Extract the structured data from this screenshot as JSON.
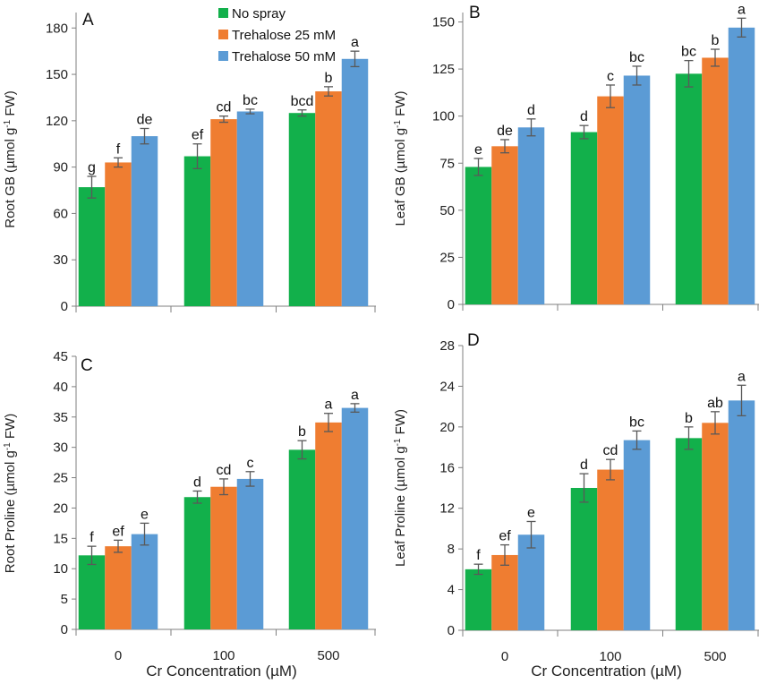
{
  "figure": {
    "x_axis_title": "Cr Concentration (µM)",
    "legend": [
      {
        "name": "No spray",
        "color": "#12b04b"
      },
      {
        "name": "Trehalose 25 mM",
        "color": "#ef7d31"
      },
      {
        "name": "Trehalose 50 mM",
        "color": "#5b9bd5"
      }
    ],
    "categories": [
      "0",
      "100",
      "500"
    ]
  },
  "chart_data": [
    {
      "panel": "A",
      "type": "bar",
      "ylabel_main": "Root GB (µmol g",
      "ylabel_sup": "-1",
      "ylabel_tail": " FW)",
      "xlabel": "",
      "ylim": [
        0,
        190
      ],
      "yticks": [
        0,
        30,
        60,
        90,
        120,
        150,
        180
      ],
      "categories": [
        "0",
        "100",
        "500"
      ],
      "series": [
        {
          "name": "No spray",
          "values": [
            77,
            97,
            125
          ],
          "errors": [
            7,
            8,
            2
          ],
          "labels": [
            "g",
            "ef",
            "bcd"
          ]
        },
        {
          "name": "Trehalose 25 mM",
          "values": [
            93,
            121,
            139
          ],
          "errors": [
            3,
            2,
            3
          ],
          "labels": [
            "f",
            "cd",
            "b"
          ]
        },
        {
          "name": "Trehalose 50 mM",
          "values": [
            110,
            126,
            160
          ],
          "errors": [
            5,
            1.5,
            5
          ],
          "labels": [
            "de",
            "bc",
            "a"
          ]
        }
      ]
    },
    {
      "panel": "B",
      "type": "bar",
      "ylabel_main": "Leaf GB (µmol g",
      "ylabel_sup": "-1",
      "ylabel_tail": " FW)",
      "xlabel": "",
      "ylim": [
        0,
        155
      ],
      "yticks": [
        0,
        25,
        50,
        75,
        100,
        125,
        150
      ],
      "categories": [
        "0",
        "100",
        "500"
      ],
      "series": [
        {
          "name": "No spray",
          "values": [
            73,
            91.5,
            122.5
          ],
          "errors": [
            4.5,
            3.5,
            7
          ],
          "labels": [
            "e",
            "d",
            "bc"
          ]
        },
        {
          "name": "Trehalose 25 mM",
          "values": [
            84,
            110.5,
            131
          ],
          "errors": [
            3.5,
            6,
            4.5
          ],
          "labels": [
            "de",
            "c",
            "b"
          ]
        },
        {
          "name": "Trehalose 50 mM",
          "values": [
            94,
            121.5,
            147
          ],
          "errors": [
            4.5,
            5,
            5
          ],
          "labels": [
            "d",
            "bc",
            "a"
          ]
        }
      ]
    },
    {
      "panel": "C",
      "type": "bar",
      "ylabel_main": "Root Proline (µmol g",
      "ylabel_sup": "-1",
      "ylabel_tail": " FW)",
      "xlabel": "Cr Concentration (µM)",
      "ylim": [
        0,
        45
      ],
      "yticks": [
        0,
        5,
        10,
        15,
        20,
        25,
        30,
        35,
        40,
        45
      ],
      "categories": [
        "0",
        "100",
        "500"
      ],
      "series": [
        {
          "name": "No spray",
          "values": [
            12.2,
            21.8,
            29.6
          ],
          "errors": [
            1.5,
            1.0,
            1.5
          ],
          "labels": [
            "f",
            "d",
            "b"
          ]
        },
        {
          "name": "Trehalose 25 mM",
          "values": [
            13.7,
            23.5,
            34.1
          ],
          "errors": [
            1.0,
            1.3,
            1.5
          ],
          "labels": [
            "ef",
            "cd",
            "a"
          ]
        },
        {
          "name": "Trehalose 50 mM",
          "values": [
            15.7,
            24.8,
            36.5
          ],
          "errors": [
            1.8,
            1.2,
            0.7
          ],
          "labels": [
            "e",
            "c",
            "a"
          ]
        }
      ]
    },
    {
      "panel": "D",
      "type": "bar",
      "ylabel_main": "Leaf Proline (µmol g",
      "ylabel_sup": "-1",
      "ylabel_tail": " FW)",
      "xlabel": "Cr Concentration (µM)",
      "ylim": [
        0,
        28
      ],
      "yticks": [
        0,
        4,
        8,
        12,
        16,
        20,
        24,
        28
      ],
      "categories": [
        "0",
        "100",
        "500"
      ],
      "series": [
        {
          "name": "No spray",
          "values": [
            6.0,
            14.0,
            18.9
          ],
          "errors": [
            0.5,
            1.4,
            1.1
          ],
          "labels": [
            "f",
            "d",
            "b"
          ]
        },
        {
          "name": "Trehalose 25 mM",
          "values": [
            7.4,
            15.8,
            20.4
          ],
          "errors": [
            1.0,
            1.0,
            1.1
          ],
          "labels": [
            "ef",
            "cd",
            "ab"
          ]
        },
        {
          "name": "Trehalose 50 mM",
          "values": [
            9.4,
            18.7,
            22.6
          ],
          "errors": [
            1.3,
            0.9,
            1.5
          ],
          "labels": [
            "e",
            "bc",
            "a"
          ]
        }
      ]
    }
  ]
}
